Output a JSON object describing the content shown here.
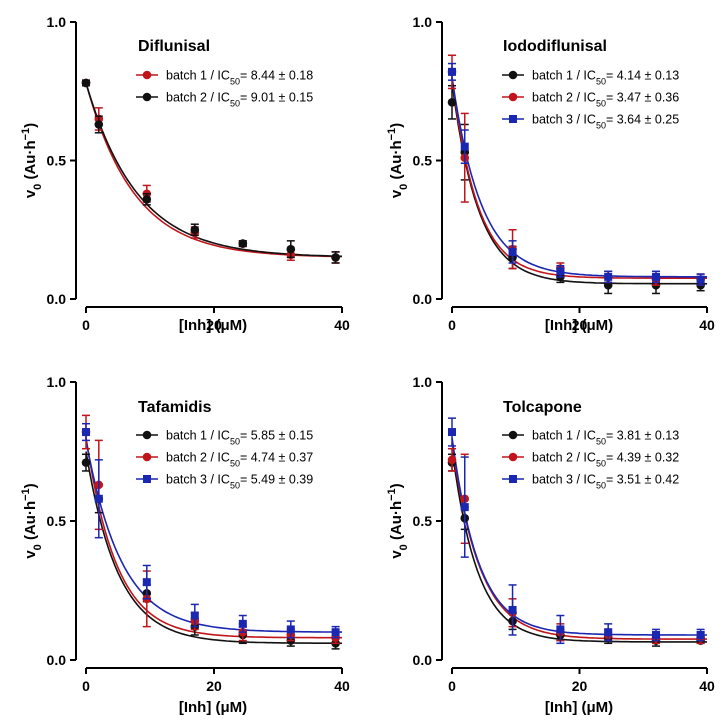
{
  "chart_data": [
    {
      "type": "scatter",
      "title": "Diflunisal",
      "xlabel": "[Inh] (μM)",
      "ylabel": "v0 (Au·h−1)",
      "xlim": [
        0,
        40
      ],
      "ylim": [
        0,
        1.0
      ],
      "xticks": [
        0,
        20,
        40
      ],
      "yticks": [
        "0.0",
        "0.5",
        "1.0"
      ],
      "legend_position": "top-right",
      "series": [
        {
          "name": "batch 1 / IC50= 8.44 ± 0.18",
          "color": "#c0151b",
          "x": [
            0,
            2,
            9.5,
            17,
            24.5,
            32,
            39
          ],
          "y": [
            0.78,
            0.65,
            0.38,
            0.24,
            0.2,
            0.16,
            0.15
          ],
          "err": [
            0.01,
            0.04,
            0.03,
            0.02,
            0.01,
            0.02,
            0.02
          ]
        },
        {
          "name": "batch 2 / IC50= 9.01 ± 0.15",
          "color": "#111111",
          "x": [
            0,
            2,
            9.5,
            17,
            24.5,
            32,
            39
          ],
          "y": [
            0.78,
            0.63,
            0.36,
            0.25,
            0.2,
            0.18,
            0.15
          ],
          "err": [
            0.01,
            0.03,
            0.02,
            0.02,
            0.01,
            0.03,
            0.02
          ]
        }
      ],
      "fit_curves": [
        {
          "color": "#c0151b",
          "y0": 0.78,
          "plateau": 0.15,
          "k": 0.133
        },
        {
          "color": "#111111",
          "y0": 0.78,
          "plateau": 0.15,
          "k": 0.125
        }
      ]
    },
    {
      "type": "scatter",
      "title": "Iododiflunisal",
      "xlabel": "[Inh] (μM)",
      "ylabel": "v0 (Au·h−1)",
      "xlim": [
        0,
        40
      ],
      "ylim": [
        0,
        1.0
      ],
      "xticks": [
        0,
        20,
        40
      ],
      "yticks": [
        "0.0",
        "0.5",
        "1.0"
      ],
      "legend_position": "top-right",
      "series": [
        {
          "name": "batch 1 / IC50= 4.14 ± 0.13",
          "color": "#111111",
          "x": [
            0,
            2,
            9.5,
            17,
            24.5,
            32,
            39
          ],
          "y": [
            0.71,
            0.53,
            0.15,
            0.08,
            0.05,
            0.05,
            0.05
          ],
          "err": [
            0.06,
            0.1,
            0.04,
            0.02,
            0.03,
            0.03,
            0.02
          ]
        },
        {
          "name": "batch 2 / IC50= 3.47 ± 0.36",
          "color": "#c0151b",
          "x": [
            0,
            2,
            9.5,
            17,
            24.5,
            32,
            39
          ],
          "y": [
            0.82,
            0.51,
            0.18,
            0.11,
            0.08,
            0.07,
            0.07
          ],
          "err": [
            0.06,
            0.16,
            0.07,
            0.02,
            0.02,
            0.02,
            0.02
          ]
        },
        {
          "name": "batch 3 / IC50= 3.64 ± 0.25",
          "color": "#1a27b0",
          "x": [
            0,
            2,
            9.5,
            17,
            24.5,
            32,
            39
          ],
          "y": [
            0.82,
            0.55,
            0.17,
            0.1,
            0.08,
            0.08,
            0.07
          ],
          "err": [
            0.03,
            0.06,
            0.04,
            0.02,
            0.02,
            0.02,
            0.02
          ]
        }
      ],
      "fit_curves": [
        {
          "color": "#111111",
          "y0": 0.78,
          "plateau": 0.055,
          "k": 0.24
        },
        {
          "color": "#c0151b",
          "y0": 0.8,
          "plateau": 0.075,
          "k": 0.25
        },
        {
          "color": "#1a27b0",
          "y0": 0.8,
          "plateau": 0.08,
          "k": 0.22
        }
      ]
    },
    {
      "type": "scatter",
      "title": "Tafamidis",
      "xlabel": "[Inh] (μM)",
      "ylabel": "v0 (Au·h−1)",
      "xlim": [
        0,
        40
      ],
      "ylim": [
        0,
        1.0
      ],
      "xticks": [
        0,
        20,
        40
      ],
      "yticks": [
        "0.0",
        "0.5",
        "1.0"
      ],
      "legend_position": "top-right",
      "series": [
        {
          "name": "batch 1 / IC50= 5.85 ± 0.15",
          "color": "#111111",
          "x": [
            0,
            2,
            9.5,
            17,
            24.5,
            32,
            39
          ],
          "y": [
            0.71,
            0.58,
            0.24,
            0.12,
            0.09,
            0.07,
            0.06
          ],
          "err": [
            0.03,
            0.05,
            0.03,
            0.03,
            0.03,
            0.02,
            0.02
          ]
        },
        {
          "name": "batch 2 / IC50= 4.74 ± 0.37",
          "color": "#c0151b",
          "x": [
            0,
            2,
            9.5,
            17,
            24.5,
            32,
            39
          ],
          "y": [
            0.82,
            0.63,
            0.22,
            0.14,
            0.1,
            0.09,
            0.08
          ],
          "err": [
            0.06,
            0.16,
            0.1,
            0.03,
            0.03,
            0.02,
            0.02
          ]
        },
        {
          "name": "batch 3 / IC50= 5.49 ± 0.39",
          "color": "#1a27b0",
          "x": [
            0,
            2,
            9.5,
            17,
            24.5,
            32,
            39
          ],
          "y": [
            0.82,
            0.58,
            0.28,
            0.16,
            0.13,
            0.11,
            0.1
          ],
          "err": [
            0.03,
            0.14,
            0.06,
            0.04,
            0.03,
            0.03,
            0.02
          ]
        }
      ],
      "fit_curves": [
        {
          "color": "#111111",
          "y0": 0.75,
          "plateau": 0.06,
          "k": 0.2
        },
        {
          "color": "#c0151b",
          "y0": 0.8,
          "plateau": 0.08,
          "k": 0.21
        },
        {
          "color": "#1a27b0",
          "y0": 0.79,
          "plateau": 0.1,
          "k": 0.18
        }
      ]
    },
    {
      "type": "scatter",
      "title": "Tolcapone",
      "xlabel": "[Inh] (μM)",
      "ylabel": "v0 (Au·h−1)",
      "xlim": [
        0,
        40
      ],
      "ylim": [
        0,
        1.0
      ],
      "xticks": [
        0,
        20,
        40
      ],
      "yticks": [
        "0.0",
        "0.5",
        "1.0"
      ],
      "legend_position": "top-right",
      "series": [
        {
          "name": "batch 1 / IC50= 3.81 ± 0.13",
          "color": "#111111",
          "x": [
            0,
            2,
            9.5,
            17,
            24.5,
            32,
            39
          ],
          "y": [
            0.71,
            0.51,
            0.14,
            0.09,
            0.08,
            0.07,
            0.07
          ],
          "err": [
            0.03,
            0.04,
            0.03,
            0.02,
            0.02,
            0.02,
            0.01
          ]
        },
        {
          "name": "batch 2 / IC50= 4.39 ± 0.32",
          "color": "#c0151b",
          "x": [
            0,
            2,
            9.5,
            17,
            24.5,
            32,
            39
          ],
          "y": [
            0.72,
            0.58,
            0.17,
            0.1,
            0.09,
            0.08,
            0.08
          ],
          "err": [
            0.04,
            0.16,
            0.05,
            0.03,
            0.02,
            0.02,
            0.02
          ]
        },
        {
          "name": "batch 3 / IC50= 3.51 ± 0.42",
          "color": "#1a27b0",
          "x": [
            0,
            2,
            9.5,
            17,
            24.5,
            32,
            39
          ],
          "y": [
            0.82,
            0.55,
            0.18,
            0.11,
            0.1,
            0.09,
            0.09
          ],
          "err": [
            0.05,
            0.18,
            0.09,
            0.05,
            0.03,
            0.02,
            0.02
          ]
        }
      ],
      "fit_curves": [
        {
          "color": "#111111",
          "y0": 0.76,
          "plateau": 0.065,
          "k": 0.25
        },
        {
          "color": "#c0151b",
          "y0": 0.78,
          "plateau": 0.075,
          "k": 0.23
        },
        {
          "color": "#1a27b0",
          "y0": 0.8,
          "plateau": 0.09,
          "k": 0.24
        }
      ]
    }
  ]
}
